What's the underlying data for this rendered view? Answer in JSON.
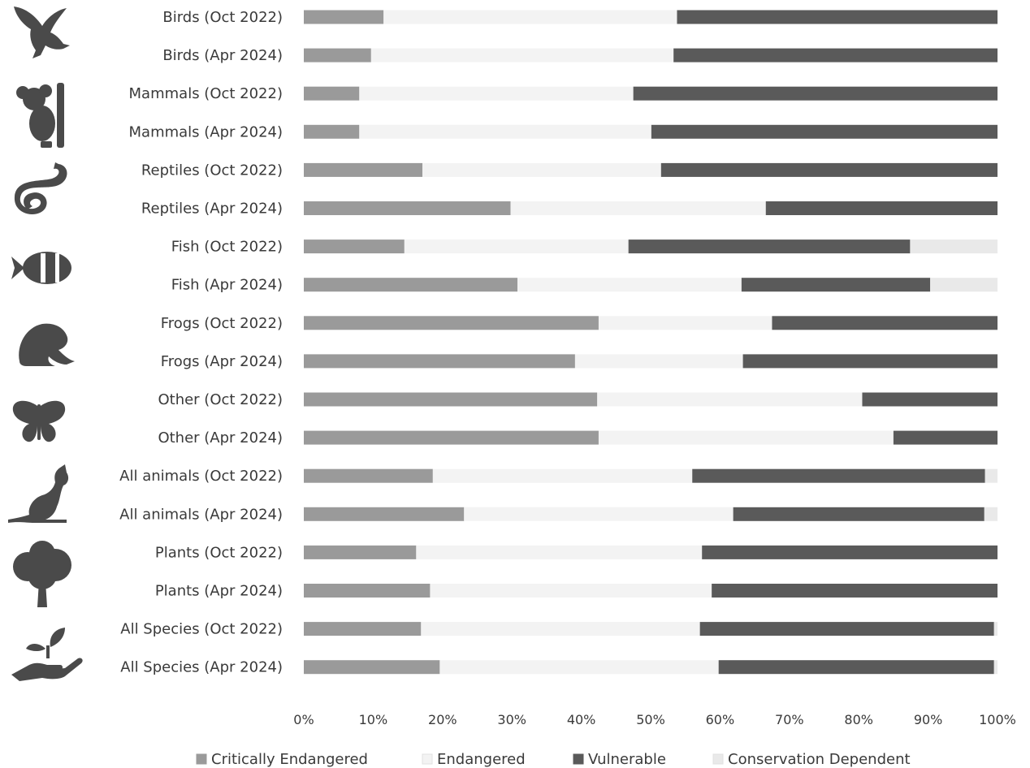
{
  "chart_data": {
    "type": "bar",
    "orientation": "horizontal",
    "stacked": "percent",
    "categories": [
      "Birds (Oct 2022)",
      "Birds (Apr 2024)",
      "Mammals (Oct 2022)",
      "Mammals (Apr 2024)",
      "Reptiles (Oct 2022)",
      "Reptiles (Apr 2024)",
      "Fish (Oct 2022)",
      "Fish (Apr 2024)",
      "Frogs (Oct 2022)",
      "Frogs (Apr 2024)",
      "Other (Oct 2022)",
      "Other (Apr 2024)",
      "All animals (Oct 2022)",
      "All animals (Apr 2024)",
      "Plants (Oct 2022)",
      "Plants (Apr 2024)",
      "All Species (Oct 2022)",
      "All Species (Apr 2024)"
    ],
    "series": [
      {
        "name": "Critically Endangered",
        "color": "#9a9a9a",
        "values": [
          11.5,
          9.7,
          8.0,
          8.0,
          17.1,
          29.8,
          14.5,
          30.8,
          42.5,
          39.1,
          42.3,
          42.5,
          18.6,
          23.1,
          16.2,
          18.2,
          16.9,
          19.6
        ]
      },
      {
        "name": "Endangered",
        "color": "#f3f3f3",
        "values": [
          42.3,
          43.6,
          39.5,
          42.1,
          34.4,
          36.8,
          32.3,
          32.3,
          25.0,
          24.2,
          38.2,
          42.5,
          37.4,
          38.8,
          41.2,
          40.6,
          40.2,
          40.2
        ]
      },
      {
        "name": "Vulnerable",
        "color": "#5a5a5a",
        "values": [
          46.2,
          46.7,
          52.5,
          49.9,
          48.5,
          33.4,
          40.6,
          27.2,
          32.5,
          36.7,
          19.5,
          15.0,
          42.2,
          36.2,
          42.6,
          41.2,
          42.4,
          39.7
        ]
      },
      {
        "name": "Conservation Dependent",
        "color": "#e9e9e9",
        "values": [
          0,
          0,
          0,
          0,
          0,
          0,
          12.6,
          9.7,
          0,
          0,
          0,
          0,
          1.8,
          1.9,
          0,
          0,
          0.5,
          0.5
        ]
      }
    ],
    "x_ticks": [
      "0%",
      "10%",
      "20%",
      "30%",
      "40%",
      "50%",
      "60%",
      "70%",
      "80%",
      "90%",
      "100%"
    ],
    "xlim": [
      0,
      100
    ],
    "grid": false,
    "legend": "bottom-center",
    "group_icons": [
      "eagle-icon",
      "koala-icon",
      "snake-icon",
      "clownfish-icon",
      "frog-icon",
      "butterfly-icon",
      "kangaroo-icon",
      "tree-icon",
      "hand-sprout-icon"
    ],
    "title": "",
    "xlabel": "",
    "ylabel": ""
  }
}
